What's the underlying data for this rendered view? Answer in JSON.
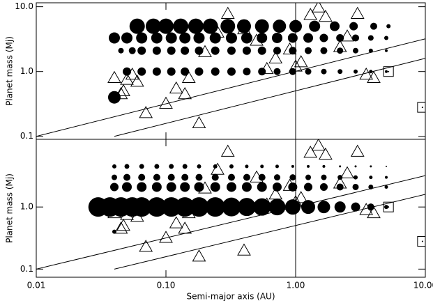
{
  "chart_data": [
    {
      "type": "scatter",
      "ylabel": "Planet mass (Mj)",
      "log_x": true,
      "log_y": true,
      "xlim": [
        0.01,
        10
      ],
      "ylim": [
        0.09,
        11.5
      ],
      "xticks": [
        0.01,
        {
          "value": 0.1,
          "label": "0.10"
        },
        {
          "value": 1,
          "label": "1.00"
        },
        {
          "value": 10,
          "label": "10.00"
        }
      ],
      "yticks": [
        0.1,
        {
          "value": 1,
          "label": "1.0"
        },
        {
          "value": 10,
          "label": "10.0"
        }
      ],
      "vline": 1,
      "series": [
        {
          "marker": "circle",
          "color": "#000000",
          "x": [
            0.06,
            0.08,
            0.1,
            0.13,
            0.17,
            0.22,
            0.3,
            0.4,
            0.55,
            0.75,
            1.0,
            1.4,
            2.0,
            2.8,
            4.0,
            5.2
          ],
          "y": [
            5,
            5,
            5,
            5,
            5,
            5,
            5,
            5,
            5,
            5,
            5,
            5,
            5,
            5,
            5,
            5
          ],
          "sizes": [
            11,
            11,
            11,
            11,
            11,
            11,
            10.5,
            10,
            10,
            9.5,
            9,
            8,
            7,
            6,
            5,
            3
          ]
        },
        {
          "marker": "circle",
          "color": "#000000",
          "x": [
            0.04,
            0.05,
            0.065,
            0.085,
            0.11,
            0.14,
            0.18,
            0.24,
            0.32,
            0.42,
            0.55,
            0.72,
            0.95,
            1.25,
            1.65,
            2.2,
            2.9,
            3.8,
            5.0
          ],
          "y": [
            3.3,
            3.3,
            3.3,
            3.3,
            3.3,
            3.3,
            3.3,
            3.3,
            3.3,
            3.3,
            3.3,
            3.3,
            3.3,
            3.3,
            3.3,
            3.3,
            3.3,
            3.3,
            3.3
          ],
          "sizes": [
            8,
            8,
            8,
            8,
            8,
            8,
            8,
            8,
            8,
            8,
            7.5,
            7.5,
            7,
            7,
            6,
            5.5,
            5,
            4,
            3
          ]
        },
        {
          "marker": "circle",
          "color": "#000000",
          "x": [
            0.045,
            0.055,
            0.065,
            0.085,
            0.11,
            0.14,
            0.18,
            0.24,
            0.32,
            0.42,
            0.55,
            0.72,
            0.95,
            1.25,
            1.65,
            2.2,
            2.9,
            3.8,
            5.0
          ],
          "y": [
            2.1,
            2.1,
            2.1,
            2.1,
            2.1,
            2.1,
            2.1,
            2.1,
            2.1,
            2.1,
            2.1,
            2.1,
            2.1,
            2.1,
            2.1,
            2.1,
            2.1,
            2.1,
            2.1
          ],
          "sizes": [
            4,
            5,
            6,
            6,
            6,
            6,
            6,
            6,
            6,
            6,
            6,
            5.5,
            5.5,
            5,
            5,
            4.5,
            4,
            3,
            2
          ]
        },
        {
          "marker": "circle",
          "color": "#000000",
          "x": [
            0.05,
            0.065,
            0.085,
            0.11,
            0.14,
            0.18,
            0.24,
            0.32,
            0.42,
            0.55,
            0.72,
            0.95,
            1.25,
            1.65,
            2.2,
            2.9,
            3.8,
            5.0
          ],
          "y": [
            1,
            1,
            1,
            1,
            1,
            1,
            1,
            1,
            1,
            1,
            1,
            1,
            1,
            1,
            1,
            1,
            1,
            1
          ],
          "sizes": [
            6,
            6,
            6,
            6,
            6,
            6,
            6,
            6,
            5.5,
            5.5,
            5,
            5,
            4.5,
            4,
            3.5,
            3,
            2.5,
            2
          ]
        },
        {
          "marker": "circle",
          "color": "#000000",
          "x": [
            0.04
          ],
          "y": [
            0.4
          ],
          "sizes": [
            9
          ]
        },
        {
          "marker": "triangle",
          "color": "#000000",
          "x": [
            0.04,
            0.045,
            0.047,
            0.05,
            0.055,
            0.06,
            0.07,
            0.1,
            0.12,
            0.14,
            0.15,
            0.18,
            0.2,
            0.25,
            0.3,
            0.4,
            0.5,
            0.6,
            0.7,
            0.9,
            1.0,
            1.1,
            1.3,
            1.5,
            1.7,
            2.2,
            2.5,
            3.0,
            3.5,
            4.0
          ],
          "y": [
            0.8,
            0.45,
            0.5,
            0.75,
            0.9,
            0.7,
            0.23,
            0.32,
            0.55,
            0.45,
            0.8,
            0.16,
            2.0,
            4.0,
            7.8,
            4.5,
            3.0,
            1.1,
            1.6,
            2.2,
            1.2,
            1.4,
            7.5,
            9.8,
            7.0,
            2.4,
            3.5,
            7.8,
            0.9,
            0.8
          ]
        },
        {
          "marker": "square",
          "color": "#000000",
          "x": [
            5.2,
            9.5
          ],
          "y": [
            1.0,
            0.28
          ]
        },
        {
          "marker": "line",
          "color": "#000000",
          "x": [
            0.01,
            10
          ],
          "y": [
            0.1,
            3.2
          ]
        },
        {
          "marker": "line",
          "color": "#000000",
          "x": [
            0.04,
            10
          ],
          "y": [
            0.1,
            1.6
          ]
        }
      ]
    },
    {
      "type": "scatter",
      "ylabel": "Planet mass (Mj)",
      "xlabel": "Semi-major axis (AU)",
      "log_x": true,
      "log_y": true,
      "xlim": [
        0.01,
        10
      ],
      "ylim": [
        0.074,
        12.3
      ],
      "xticks": [
        0.01,
        {
          "value": 0.1,
          "label": "0.10"
        },
        {
          "value": 1,
          "label": "1.00"
        },
        {
          "value": 10,
          "label": "10.00"
        }
      ],
      "yticks": [
        0.1,
        {
          "value": 1,
          "label": "1.0"
        }
      ],
      "vline": 1,
      "series": [
        {
          "marker": "circle",
          "color": "#000000",
          "x": [
            0.04,
            0.05,
            0.065,
            0.085,
            0.11,
            0.14,
            0.18,
            0.24,
            0.32,
            0.42,
            0.55,
            0.72,
            0.95,
            1.25,
            1.65,
            2.2,
            2.9,
            3.8,
            5.0
          ],
          "y": [
            4.5,
            4.5,
            4.5,
            4.5,
            4.5,
            4.5,
            4.5,
            4.5,
            4.5,
            4.5,
            4.5,
            4.5,
            4.5,
            4.5,
            4.5,
            4.5,
            4.5,
            4.5,
            4.5
          ],
          "sizes": [
            3,
            3.5,
            3.5,
            3.5,
            3.5,
            3.5,
            3,
            3,
            3,
            2.5,
            2.5,
            2.5,
            2,
            2,
            2,
            1.5,
            1.5,
            1.5,
            1
          ]
        },
        {
          "marker": "circle",
          "color": "#000000",
          "x": [
            0.04,
            0.05,
            0.065,
            0.085,
            0.11,
            0.14,
            0.18,
            0.24,
            0.32,
            0.42,
            0.55,
            0.72,
            0.95,
            1.25,
            1.65,
            2.2,
            2.9,
            3.8,
            5.0
          ],
          "y": [
            3,
            3,
            3,
            3,
            3,
            3,
            3,
            3,
            3,
            3,
            3,
            3,
            3,
            3,
            3,
            3,
            3,
            3,
            3
          ],
          "sizes": [
            4,
            5,
            5,
            5,
            5,
            5,
            5,
            5,
            5,
            5,
            5,
            4.5,
            4.5,
            4,
            4,
            3.5,
            3,
            2.5,
            2
          ]
        },
        {
          "marker": "circle",
          "color": "#000000",
          "x": [
            0.04,
            0.05,
            0.065,
            0.085,
            0.11,
            0.14,
            0.18,
            0.24,
            0.32,
            0.42,
            0.55,
            0.72,
            0.95,
            1.25,
            1.65,
            2.2,
            2.9,
            3.8,
            5.0
          ],
          "y": [
            2.1,
            2.1,
            2.1,
            2.1,
            2.1,
            2.1,
            2.1,
            2.1,
            2.1,
            2.1,
            2.1,
            2.1,
            2.1,
            2.1,
            2.1,
            2.1,
            2.1,
            2.1,
            2.1
          ],
          "sizes": [
            6,
            7,
            7,
            7,
            7,
            7,
            7,
            7,
            7,
            7,
            7,
            6.5,
            6.5,
            6,
            5.5,
            5,
            4.5,
            3.5,
            2.5
          ]
        },
        {
          "marker": "circle",
          "color": "#000000",
          "x": [
            0.03,
            0.037,
            0.045,
            0.055,
            0.065,
            0.085,
            0.11,
            0.14,
            0.18,
            0.24,
            0.32,
            0.42,
            0.55,
            0.72,
            0.95,
            1.25,
            1.65,
            2.2,
            2.9,
            3.8,
            5.0
          ],
          "y": [
            1,
            1,
            1,
            1,
            1,
            1,
            1,
            1,
            1,
            1,
            1,
            1,
            1,
            1,
            1,
            1,
            1,
            1,
            1,
            1,
            1
          ],
          "sizes": [
            14,
            14,
            14,
            14,
            14,
            14,
            14,
            14,
            14,
            14,
            13.5,
            13,
            12.5,
            12,
            11,
            10,
            9,
            8,
            6.5,
            5,
            3
          ]
        },
        {
          "marker": "circle",
          "color": "#000000",
          "x": [
            0.04
          ],
          "y": [
            0.4
          ],
          "sizes": [
            3
          ]
        },
        {
          "marker": "triangle",
          "color": "#000000",
          "x": [
            0.04,
            0.045,
            0.047,
            0.05,
            0.055,
            0.06,
            0.07,
            0.1,
            0.12,
            0.14,
            0.15,
            0.18,
            0.2,
            0.25,
            0.3,
            0.4,
            0.5,
            0.6,
            0.7,
            0.9,
            1.0,
            1.1,
            1.3,
            1.5,
            1.7,
            2.2,
            2.5,
            3.0,
            3.5,
            4.0
          ],
          "y": [
            0.8,
            0.45,
            0.5,
            0.75,
            0.9,
            0.7,
            0.23,
            0.32,
            0.55,
            0.45,
            0.8,
            0.16,
            2.0,
            4.0,
            7.8,
            0.2,
            3.0,
            1.1,
            1.6,
            2.2,
            1.2,
            1.4,
            7.5,
            9.8,
            7.0,
            2.4,
            3.5,
            7.8,
            0.9,
            0.8
          ]
        },
        {
          "marker": "square",
          "color": "#000000",
          "x": [
            5.2,
            9.5
          ],
          "y": [
            1.0,
            0.28
          ]
        },
        {
          "marker": "line",
          "color": "#000000",
          "x": [
            0.01,
            10
          ],
          "y": [
            0.1,
            3.2
          ]
        },
        {
          "marker": "line",
          "color": "#000000",
          "x": [
            0.04,
            10
          ],
          "y": [
            0.1,
            1.6
          ]
        }
      ]
    }
  ]
}
